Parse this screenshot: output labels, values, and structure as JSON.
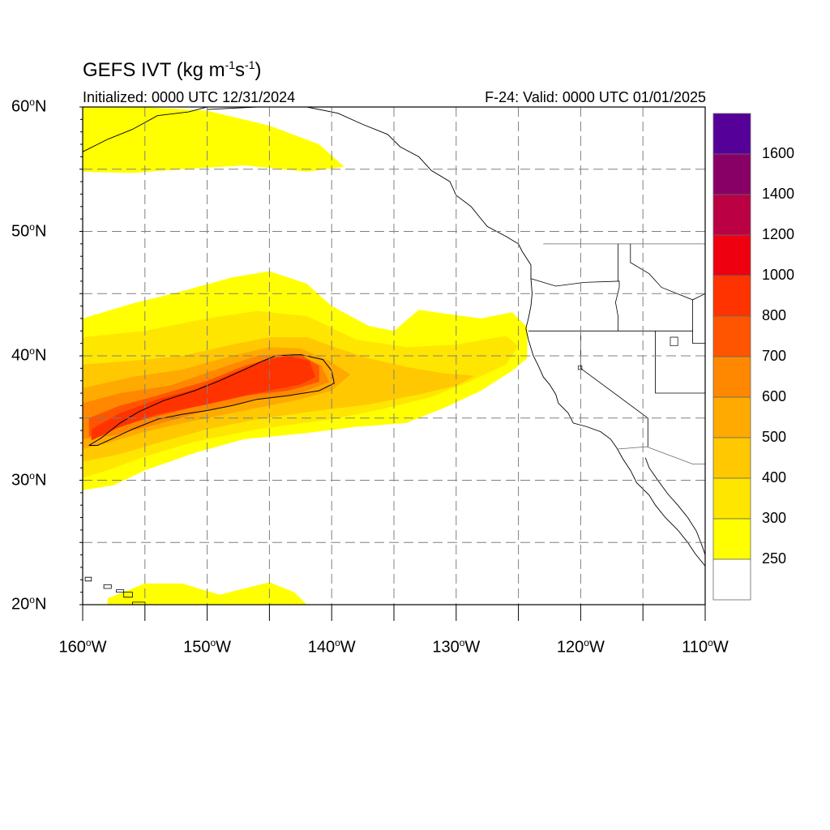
{
  "title": {
    "main": "GEFS IVT (kg m",
    "exp1": "-1",
    "mid": "s",
    "exp2": "-1",
    "close": ")"
  },
  "subtitle_left": "Initialized: 0000 UTC 12/31/2024",
  "subtitle_right": "F-24: Valid: 0000 UTC 01/01/2025",
  "map": {
    "lon_range": [
      -160,
      -110
    ],
    "lat_range": [
      20,
      60
    ],
    "grid": "dashed every 5 degrees",
    "lat_labels": [
      {
        "value": "60",
        "unit": "o",
        "hemi": "N"
      },
      {
        "value": "50",
        "unit": "o",
        "hemi": "N"
      },
      {
        "value": "40",
        "unit": "o",
        "hemi": "N"
      },
      {
        "value": "30",
        "unit": "o",
        "hemi": "N"
      },
      {
        "value": "20",
        "unit": "o",
        "hemi": "N"
      }
    ],
    "lon_labels": [
      {
        "value": "160",
        "unit": "o",
        "hemi": "W"
      },
      {
        "value": "150",
        "unit": "o",
        "hemi": "W"
      },
      {
        "value": "140",
        "unit": "o",
        "hemi": "W"
      },
      {
        "value": "130",
        "unit": "o",
        "hemi": "W"
      },
      {
        "value": "120",
        "unit": "o",
        "hemi": "W"
      },
      {
        "value": "110",
        "unit": "o",
        "hemi": "W"
      }
    ],
    "outline_contour_value": 1000,
    "ivt_regions": [
      {
        "level": 250,
        "ring": [
          [
            -160,
            60
          ],
          [
            -155,
            60
          ],
          [
            -150,
            59.7
          ],
          [
            -145,
            58.5
          ],
          [
            -141,
            57
          ],
          [
            -139,
            55.2
          ],
          [
            -142,
            54.8
          ],
          [
            -147,
            55.3
          ],
          [
            -152,
            55
          ],
          [
            -156,
            54.7
          ],
          [
            -160,
            54.8
          ]
        ]
      },
      {
        "level": 250,
        "ring": [
          [
            -160,
            43
          ],
          [
            -156,
            44.2
          ],
          [
            -152,
            45.2
          ],
          [
            -148,
            46.3
          ],
          [
            -145,
            46.8
          ],
          [
            -142,
            45.8
          ],
          [
            -140,
            44
          ],
          [
            -137,
            42.4
          ],
          [
            -135,
            42
          ],
          [
            -133,
            43.7
          ],
          [
            -131,
            43.4
          ],
          [
            -128,
            43
          ],
          [
            -125.5,
            43.5
          ],
          [
            -124.3,
            42.3
          ],
          [
            -124.3,
            39.8
          ],
          [
            -125.5,
            38.8
          ],
          [
            -128,
            37.2
          ],
          [
            -131,
            35.8
          ],
          [
            -134,
            34.6
          ],
          [
            -138,
            34.3
          ],
          [
            -142,
            33.8
          ],
          [
            -147,
            33.3
          ],
          [
            -151,
            32.2
          ],
          [
            -155,
            30.8
          ],
          [
            -157.5,
            29.6
          ],
          [
            -160,
            29.2
          ]
        ]
      },
      {
        "level": 250,
        "ring": [
          [
            -158,
            20.5
          ],
          [
            -155,
            21.7
          ],
          [
            -152,
            21.7
          ],
          [
            -149,
            20.8
          ],
          [
            -147,
            21.3
          ],
          [
            -145,
            21.8
          ],
          [
            -143,
            21
          ],
          [
            -142,
            20
          ],
          [
            -158,
            20
          ]
        ]
      },
      {
        "level": 300,
        "ring": [
          [
            -160,
            41.5
          ],
          [
            -155,
            42
          ],
          [
            -150,
            43
          ],
          [
            -146,
            43.6
          ],
          [
            -142,
            43.2
          ],
          [
            -138,
            41.3
          ],
          [
            -134,
            40.7
          ],
          [
            -130,
            40.9
          ],
          [
            -126,
            41.6
          ],
          [
            -125,
            40.8
          ],
          [
            -126,
            39.3
          ],
          [
            -129,
            37.9
          ],
          [
            -132,
            36.7
          ],
          [
            -136,
            35.7
          ],
          [
            -140,
            34.9
          ],
          [
            -146,
            34.1
          ],
          [
            -151,
            33.1
          ],
          [
            -155,
            31.9
          ],
          [
            -158,
            30.8
          ],
          [
            -160,
            30.2
          ]
        ]
      },
      {
        "level": 400,
        "ring": [
          [
            -160,
            39.3
          ],
          [
            -156,
            39.6
          ],
          [
            -152,
            40
          ],
          [
            -148,
            40.9
          ],
          [
            -145,
            41.5
          ],
          [
            -142,
            41.5
          ],
          [
            -139.5,
            40.6
          ],
          [
            -137,
            39.8
          ],
          [
            -134,
            39.1
          ],
          [
            -131,
            38.6
          ],
          [
            -128.5,
            38.4
          ],
          [
            -130,
            37.6
          ],
          [
            -133,
            36.9
          ],
          [
            -137,
            36.1
          ],
          [
            -141,
            35.6
          ],
          [
            -146,
            34.9
          ],
          [
            -150,
            34.1
          ],
          [
            -154,
            33
          ],
          [
            -157,
            32.1
          ],
          [
            -160,
            31.5
          ]
        ]
      },
      {
        "level": 500,
        "ring": [
          [
            -160,
            37.4
          ],
          [
            -156,
            38.3
          ],
          [
            -152,
            38.9
          ],
          [
            -148,
            40
          ],
          [
            -145,
            40.7
          ],
          [
            -142.5,
            40.6
          ],
          [
            -140.2,
            39.6
          ],
          [
            -138.5,
            38.5
          ],
          [
            -140,
            37.2
          ],
          [
            -143,
            36.4
          ],
          [
            -147,
            35.6
          ],
          [
            -151,
            34.8
          ],
          [
            -155,
            33.9
          ],
          [
            -158,
            33
          ],
          [
            -160,
            32.5
          ]
        ]
      },
      {
        "level": 600,
        "ring": [
          [
            -160,
            36.2
          ],
          [
            -157,
            37
          ],
          [
            -153,
            37.6
          ],
          [
            -149,
            39
          ],
          [
            -146,
            40
          ],
          [
            -143,
            40.2
          ],
          [
            -140.8,
            39.2
          ],
          [
            -140.2,
            37.9
          ],
          [
            -142.5,
            37
          ],
          [
            -146,
            36.5
          ],
          [
            -150,
            35.6
          ],
          [
            -154,
            34.5
          ],
          [
            -157.5,
            33.6
          ],
          [
            -160,
            33.3
          ]
        ]
      },
      {
        "level": 700,
        "ring": [
          [
            -159.5,
            35
          ],
          [
            -157,
            36
          ],
          [
            -154,
            36.8
          ],
          [
            -150,
            38
          ],
          [
            -147,
            39.2
          ],
          [
            -144.5,
            39.9
          ],
          [
            -142.5,
            40.1
          ],
          [
            -141,
            39.2
          ],
          [
            -141,
            37.9
          ],
          [
            -143.5,
            37.2
          ],
          [
            -147,
            36.8
          ],
          [
            -151,
            35.9
          ],
          [
            -155,
            34.9
          ],
          [
            -158,
            34
          ],
          [
            -159.5,
            33.5
          ]
        ]
      },
      {
        "level": 800,
        "ring": [
          [
            -159.3,
            34.1
          ],
          [
            -157,
            35.4
          ],
          [
            -154,
            36.5
          ],
          [
            -151,
            37.3
          ],
          [
            -148,
            38.6
          ],
          [
            -145.5,
            39.6
          ],
          [
            -143.5,
            40
          ],
          [
            -141.8,
            39.6
          ],
          [
            -141.3,
            38.3
          ],
          [
            -142.5,
            37.7
          ],
          [
            -146,
            37
          ],
          [
            -150,
            36.1
          ],
          [
            -154,
            35.3
          ],
          [
            -157.2,
            34.2
          ],
          [
            -159.3,
            33.2
          ]
        ]
      }
    ],
    "contour_line": [
      [
        -159.5,
        32.8
      ],
      [
        -158.5,
        33.4
      ],
      [
        -157,
        34.6
      ],
      [
        -155.5,
        35.5
      ],
      [
        -153.5,
        36.4
      ],
      [
        -151,
        37.2
      ],
      [
        -149,
        38
      ],
      [
        -147,
        38.9
      ],
      [
        -145.5,
        39.6
      ],
      [
        -144.5,
        40
      ],
      [
        -142.5,
        40.1
      ],
      [
        -140.7,
        39.7
      ],
      [
        -140,
        38.8
      ],
      [
        -139.8,
        37.8
      ],
      [
        -141,
        37.2
      ],
      [
        -143.5,
        36.8
      ],
      [
        -146,
        36.5
      ],
      [
        -148,
        36
      ],
      [
        -150,
        35.6
      ],
      [
        -152,
        35.3
      ],
      [
        -154,
        34.9
      ],
      [
        -156,
        34.1
      ],
      [
        -157.5,
        33.4
      ],
      [
        -158.8,
        32.8
      ],
      [
        -159.5,
        32.8
      ]
    ],
    "coastline": [
      [
        -160,
        56.4
      ],
      [
        -158,
        57.4
      ],
      [
        -156,
        58.2
      ],
      [
        -154,
        59.3
      ],
      [
        -151.5,
        59.6
      ],
      [
        -150,
        60
      ]
    ],
    "coastline2": [
      [
        -150,
        59.8
      ],
      [
        -146,
        60
      ],
      [
        -142,
        60
      ],
      [
        -139.5,
        59.5
      ],
      [
        -137.5,
        58.6
      ],
      [
        -135.5,
        57.8
      ],
      [
        -134.5,
        56.8
      ],
      [
        -133,
        56
      ],
      [
        -132,
        54.9
      ],
      [
        -130.5,
        54
      ],
      [
        -130,
        52.9
      ],
      [
        -128.8,
        52
      ],
      [
        -128,
        51
      ],
      [
        -127.5,
        50.4
      ],
      [
        -126,
        49.6
      ],
      [
        -125,
        49
      ],
      [
        -124.7,
        48.4
      ],
      [
        -124,
        47.3
      ],
      [
        -124,
        46.2
      ],
      [
        -123.9,
        45
      ],
      [
        -124,
        44
      ],
      [
        -124.2,
        43
      ],
      [
        -124.4,
        42.2
      ],
      [
        -124.2,
        41.3
      ],
      [
        -123.8,
        40
      ],
      [
        -123.4,
        39.2
      ],
      [
        -123,
        38.3
      ],
      [
        -122.5,
        37.7
      ],
      [
        -122,
        36.9
      ],
      [
        -121.8,
        36.2
      ],
      [
        -121,
        35.4
      ],
      [
        -120.6,
        34.6
      ],
      [
        -119.5,
        34.3
      ],
      [
        -118.4,
        33.9
      ],
      [
        -117.6,
        33.3
      ],
      [
        -117.1,
        32.6
      ],
      [
        -116.6,
        31.7
      ],
      [
        -116,
        30.8
      ],
      [
        -115.5,
        29.8
      ],
      [
        -114.5,
        28.8
      ],
      [
        -114,
        28
      ],
      [
        -113.2,
        27
      ],
      [
        -112.2,
        26
      ],
      [
        -111.4,
        25
      ],
      [
        -110.8,
        24.1
      ],
      [
        -110,
        23.1
      ]
    ],
    "gulf_coast": [
      [
        -114.8,
        31.8
      ],
      [
        -114.5,
        31
      ],
      [
        -113.8,
        30
      ],
      [
        -113,
        28.9
      ],
      [
        -112.2,
        28
      ],
      [
        -111.4,
        27
      ],
      [
        -110.7,
        25.9
      ],
      [
        -110.2,
        24.6
      ],
      [
        -110,
        24
      ]
    ],
    "us_canada_border": [
      [
        -123,
        49
      ],
      [
        -110,
        49
      ]
    ],
    "us_mexico_border": [
      [
        -117.1,
        32.5
      ],
      [
        -114.7,
        32.7
      ],
      [
        -111,
        31.3
      ],
      [
        -110,
        31.3
      ]
    ],
    "state_lines": [
      [
        [
          -124,
          46.2
        ],
        [
          -122,
          45.6
        ],
        [
          -119.7,
          45.9
        ],
        [
          -116.9,
          46
        ],
        [
          -116.9,
          45.5
        ],
        [
          -117.2,
          44.3
        ],
        [
          -117,
          43.2
        ],
        [
          -117,
          42
        ]
      ],
      [
        [
          -124.2,
          42
        ],
        [
          -117,
          42
        ],
        [
          -111,
          42
        ]
      ],
      [
        [
          -117,
          49
        ],
        [
          -117,
          46
        ],
        [
          -116.9,
          46
        ]
      ],
      [
        [
          -120,
          42
        ],
        [
          -120,
          39
        ],
        [
          -114.6,
          35
        ],
        [
          -114.6,
          32.7
        ]
      ],
      [
        [
          -114,
          42
        ],
        [
          -114,
          37
        ],
        [
          -109,
          37
        ]
      ],
      [
        [
          -111,
          44.5
        ],
        [
          -111,
          41
        ],
        [
          -110,
          41
        ]
      ],
      [
        [
          -116,
          49
        ],
        [
          -116,
          47.5
        ],
        [
          -114.5,
          46.6
        ],
        [
          -113.5,
          45.5
        ],
        [
          -111,
          44.5
        ],
        [
          -110,
          45
        ]
      ]
    ],
    "hawaii": [
      [
        [
          -159.8,
          22.2
        ],
        [
          -159.3,
          22.2
        ],
        [
          -159.3,
          21.9
        ],
        [
          -159.8,
          21.9
        ]
      ],
      [
        [
          -158.3,
          21.6
        ],
        [
          -157.7,
          21.6
        ],
        [
          -157.7,
          21.3
        ],
        [
          -158.3,
          21.3
        ]
      ],
      [
        [
          -157.3,
          21.2
        ],
        [
          -156.7,
          21.2
        ],
        [
          -156.7,
          21
        ],
        [
          -157.3,
          21
        ]
      ],
      [
        [
          -156.7,
          21
        ],
        [
          -156,
          21
        ],
        [
          -156,
          20.6
        ],
        [
          -156.7,
          20.6
        ]
      ],
      [
        [
          -156,
          20.2
        ],
        [
          -155,
          20.2
        ],
        [
          -154.9,
          19.5
        ],
        [
          -155.9,
          19.2
        ],
        [
          -156,
          20.2
        ]
      ]
    ],
    "lakes": [
      [
        [
          -112.8,
          41.5
        ],
        [
          -112.2,
          41.5
        ],
        [
          -112.2,
          40.8
        ],
        [
          -112.8,
          40.8
        ]
      ],
      [
        [
          -120.2,
          39.2
        ],
        [
          -119.9,
          39.2
        ],
        [
          -119.9,
          38.9
        ],
        [
          -120.2,
          38.9
        ]
      ]
    ]
  },
  "colorbar": {
    "levels": [
      250,
      300,
      400,
      500,
      600,
      700,
      800,
      1000,
      1200,
      1400,
      1600
    ],
    "labels": [
      "250",
      "300",
      "400",
      "500",
      "600",
      "700",
      "800",
      "1000",
      "1200",
      "1400",
      "1600"
    ],
    "colors": [
      "#ffffff",
      "#ffff00",
      "#ffe600",
      "#ffc800",
      "#ffaa00",
      "#ff8800",
      "#ff5500",
      "#ff3300",
      "#ee0011",
      "#bb0044",
      "#880066",
      "#550099"
    ],
    "level_colors": {
      "250": "#ffff00",
      "300": "#ffe600",
      "400": "#ffc800",
      "500": "#ffaa00",
      "600": "#ff8800",
      "700": "#ff5500",
      "800": "#ff3300"
    }
  }
}
